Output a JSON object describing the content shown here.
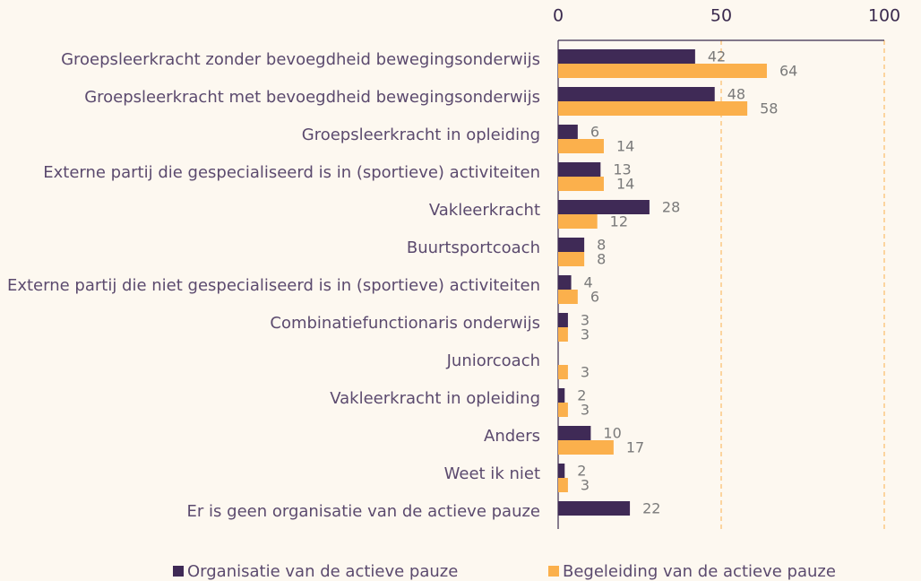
{
  "chart_data": {
    "type": "bar",
    "orientation": "horizontal",
    "categories": [
      "Groepsleerkracht zonder bevoegdheid bewegingsonderwijs",
      "Groepsleerkracht met bevoegdheid bewegingsonderwijs",
      "Groepsleerkracht in opleiding",
      "Externe partij die gespecialiseerd is in (sportieve) activiteiten",
      "Vakleerkracht",
      "Buurtsportcoach",
      "Externe partij die niet gespecialiseerd is in (sportieve) activiteiten",
      "Combinatiefunctionaris onderwijs",
      "Juniorcoach",
      "Vakleerkracht in opleiding",
      "Anders",
      "Weet ik niet",
      "Er is geen organisatie van de actieve pauze"
    ],
    "series": [
      {
        "name": "Organisatie van de actieve pauze",
        "color": "#3f2a56",
        "values": [
          42,
          48,
          6,
          13,
          28,
          8,
          4,
          3,
          null,
          2,
          10,
          2,
          22
        ]
      },
      {
        "name": "Begeleiding van de actieve pauze",
        "color": "#fbb04c",
        "values": [
          64,
          58,
          14,
          14,
          12,
          8,
          6,
          3,
          3,
          3,
          17,
          3,
          null
        ]
      }
    ],
    "xlim": [
      0,
      100
    ],
    "xticks": [
      0,
      50,
      100
    ],
    "grid": true,
    "legend": "bottom"
  }
}
